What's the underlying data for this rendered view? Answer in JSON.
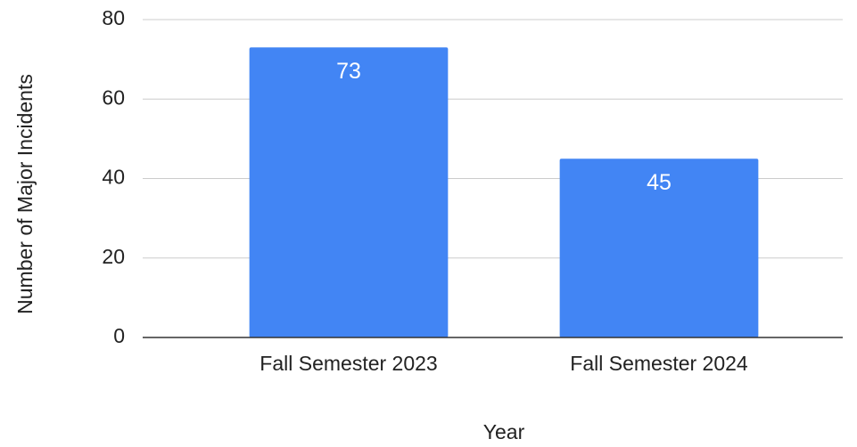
{
  "chart_data": {
    "type": "bar",
    "x_label": "Year",
    "y_label": "Number of Major Incidents",
    "categories": [
      "Fall Semester 2023",
      "Fall Semester 2024"
    ],
    "values": [
      73,
      45
    ],
    "color": "#4285f4",
    "ylim": [
      0,
      80
    ],
    "yticks": [
      0,
      20,
      40,
      60,
      80
    ],
    "grid": true
  }
}
